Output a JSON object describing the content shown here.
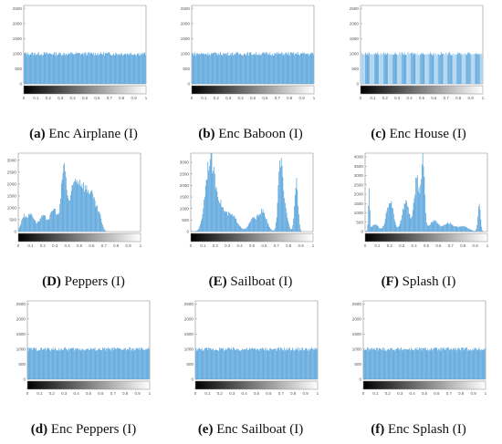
{
  "colors": {
    "bar": "#5aa5dc",
    "bar_dark": "#3f8fcd",
    "axis": "#888888",
    "tick_text": "#555555"
  },
  "chart_data": [
    {
      "type": "bar",
      "id": "a",
      "caption_letter": "(a)",
      "caption_text": " Enc Airplane (I)",
      "xlim": [
        0,
        1
      ],
      "ylim": [
        0,
        2600
      ],
      "yticks": [
        "0",
        "500",
        "1000",
        "1500",
        "2000",
        "2500"
      ],
      "ytick_values": [
        0,
        500,
        1000,
        1500,
        2000,
        2500
      ],
      "xticks": [
        "0",
        "0.1",
        "0.2",
        "0.3",
        "0.4",
        "0.5",
        "0.6",
        "0.7",
        "0.8",
        "0.9",
        "1"
      ],
      "profile": "uniform",
      "level": 1000,
      "noise": 60
    },
    {
      "type": "bar",
      "id": "b",
      "caption_letter": "(b)",
      "caption_text": " Enc Baboon (I)",
      "xlim": [
        0,
        1
      ],
      "ylim": [
        0,
        2600
      ],
      "yticks": [
        "0",
        "500",
        "1000",
        "1500",
        "2000",
        "2500"
      ],
      "ytick_values": [
        0,
        500,
        1000,
        1500,
        2000,
        2500
      ],
      "xticks": [
        "0",
        "0.1",
        "0.2",
        "0.3",
        "0.4",
        "0.5",
        "0.6",
        "0.7",
        "0.8",
        "0.9",
        "1"
      ],
      "profile": "uniform",
      "level": 1000,
      "noise": 60
    },
    {
      "type": "bar",
      "id": "c",
      "caption_letter": "(c)",
      "caption_text": " Enc House (I)",
      "xlim": [
        0,
        1
      ],
      "ylim": [
        0,
        2600
      ],
      "yticks": [
        "0",
        "500",
        "1000",
        "1500",
        "2000",
        "2500"
      ],
      "ytick_values": [
        0,
        500,
        1000,
        1500,
        2000,
        2500
      ],
      "xticks": [
        "0",
        "0.1",
        "0.2",
        "0.3",
        "0.4",
        "0.5",
        "0.6",
        "0.7",
        "0.8",
        "0.9",
        "1"
      ],
      "profile": "uniform_striped",
      "level": 1000,
      "noise": 50
    },
    {
      "type": "bar",
      "id": "D",
      "caption_letter": "(D)",
      "caption_text": " Peppers (I)",
      "xlim": [
        0,
        1
      ],
      "ylim": [
        0,
        3300
      ],
      "yticks": [
        "0",
        "500",
        "1000",
        "1500",
        "2000",
        "2500",
        "3000"
      ],
      "ytick_values": [
        0,
        500,
        1000,
        1500,
        2000,
        2500,
        3000
      ],
      "xticks": [
        "0",
        "0.1",
        "0.2",
        "0.3",
        "0.4",
        "0.5",
        "0.6",
        "0.7",
        "0.8",
        "0.9",
        "1"
      ],
      "profile": "peaks",
      "peaks": [
        [
          0.04,
          600,
          0.03
        ],
        [
          0.1,
          750,
          0.04
        ],
        [
          0.2,
          650,
          0.05
        ],
        [
          0.29,
          950,
          0.04
        ],
        [
          0.37,
          2700,
          0.03
        ],
        [
          0.45,
          1600,
          0.05
        ],
        [
          0.52,
          1750,
          0.06
        ],
        [
          0.6,
          1300,
          0.05
        ],
        [
          0.66,
          500,
          0.03
        ]
      ],
      "cutoff": 0.73
    },
    {
      "type": "bar",
      "id": "E",
      "caption_letter": "(E)",
      "caption_text": " Sailboat (I)",
      "xlim": [
        0,
        1
      ],
      "ylim": [
        0,
        3400
      ],
      "yticks": [
        "0",
        "500",
        "1000",
        "1500",
        "2000",
        "2500",
        "3000"
      ],
      "ytick_values": [
        0,
        500,
        1000,
        1500,
        2000,
        2500,
        3000
      ],
      "xticks": [
        "0",
        "0.1",
        "0.2",
        "0.3",
        "0.4",
        "0.5",
        "0.6",
        "0.7",
        "0.8",
        "0.9",
        "1"
      ],
      "profile": "peaks",
      "peaks": [
        [
          0.15,
          2900,
          0.05
        ],
        [
          0.22,
          1200,
          0.06
        ],
        [
          0.33,
          700,
          0.07
        ],
        [
          0.5,
          500,
          0.04
        ],
        [
          0.58,
          900,
          0.05
        ],
        [
          0.73,
          3000,
          0.025
        ],
        [
          0.77,
          900,
          0.03
        ],
        [
          0.86,
          2300,
          0.02
        ]
      ],
      "cutoff": 0.9
    },
    {
      "type": "bar",
      "id": "F",
      "caption_letter": "(F)",
      "caption_text": " Splash (I)",
      "xlim": [
        0,
        1
      ],
      "ylim": [
        0,
        4200
      ],
      "yticks": [
        "0",
        "500",
        "1000",
        "1500",
        "2000",
        "2500",
        "3000",
        "3500",
        "4000"
      ],
      "ytick_values": [
        0,
        500,
        1000,
        1500,
        2000,
        2500,
        3000,
        3500,
        4000
      ],
      "xticks": [
        "0",
        "0.1",
        "0.2",
        "0.3",
        "0.4",
        "0.5",
        "0.6",
        "0.7",
        "0.8",
        "0.9",
        "1"
      ],
      "profile": "peaks",
      "peaks": [
        [
          0.03,
          2300,
          0.008
        ],
        [
          0.08,
          400,
          0.04
        ],
        [
          0.2,
          1700,
          0.04
        ],
        [
          0.33,
          1600,
          0.04
        ],
        [
          0.42,
          2800,
          0.03
        ],
        [
          0.47,
          4100,
          0.02
        ],
        [
          0.56,
          600,
          0.05
        ],
        [
          0.68,
          450,
          0.06
        ],
        [
          0.8,
          300,
          0.06
        ],
        [
          0.93,
          1400,
          0.015
        ]
      ],
      "cutoff": 0.96
    },
    {
      "type": "bar",
      "id": "d",
      "caption_letter": "(d)",
      "caption_text": " Enc Peppers (I)",
      "xlim": [
        0,
        1
      ],
      "ylim": [
        0,
        2600
      ],
      "yticks": [
        "0",
        "500",
        "1000",
        "1500",
        "2000",
        "2500"
      ],
      "ytick_values": [
        0,
        500,
        1000,
        1500,
        2000,
        2500
      ],
      "xticks": [
        "0",
        "0.1",
        "0.2",
        "0.3",
        "0.4",
        "0.5",
        "0.6",
        "0.7",
        "0.8",
        "0.9",
        "1"
      ],
      "profile": "uniform",
      "level": 1000,
      "noise": 60
    },
    {
      "type": "bar",
      "id": "e",
      "caption_letter": "(e)",
      "caption_text": " Enc Sailboat (I)",
      "xlim": [
        0,
        1
      ],
      "ylim": [
        0,
        2600
      ],
      "yticks": [
        "0",
        "500",
        "1000",
        "1500",
        "2000",
        "2500"
      ],
      "ytick_values": [
        0,
        500,
        1000,
        1500,
        2000,
        2500
      ],
      "xticks": [
        "0",
        "0.1",
        "0.2",
        "0.3",
        "0.4",
        "0.5",
        "0.6",
        "0.7",
        "0.8",
        "0.9",
        "1"
      ],
      "profile": "uniform",
      "level": 1000,
      "noise": 60
    },
    {
      "type": "bar",
      "id": "f",
      "caption_letter": "(f)",
      "caption_text": " Enc Splash (I)",
      "xlim": [
        0,
        1
      ],
      "ylim": [
        0,
        2600
      ],
      "yticks": [
        "0",
        "500",
        "1000",
        "1500",
        "2000",
        "2500"
      ],
      "ytick_values": [
        0,
        500,
        1000,
        1500,
        2000,
        2500
      ],
      "xticks": [
        "0",
        "0.1",
        "0.2",
        "0.3",
        "0.4",
        "0.5",
        "0.6",
        "0.7",
        "0.8",
        "0.9",
        "1"
      ],
      "profile": "uniform",
      "level": 1000,
      "noise": 60
    }
  ]
}
